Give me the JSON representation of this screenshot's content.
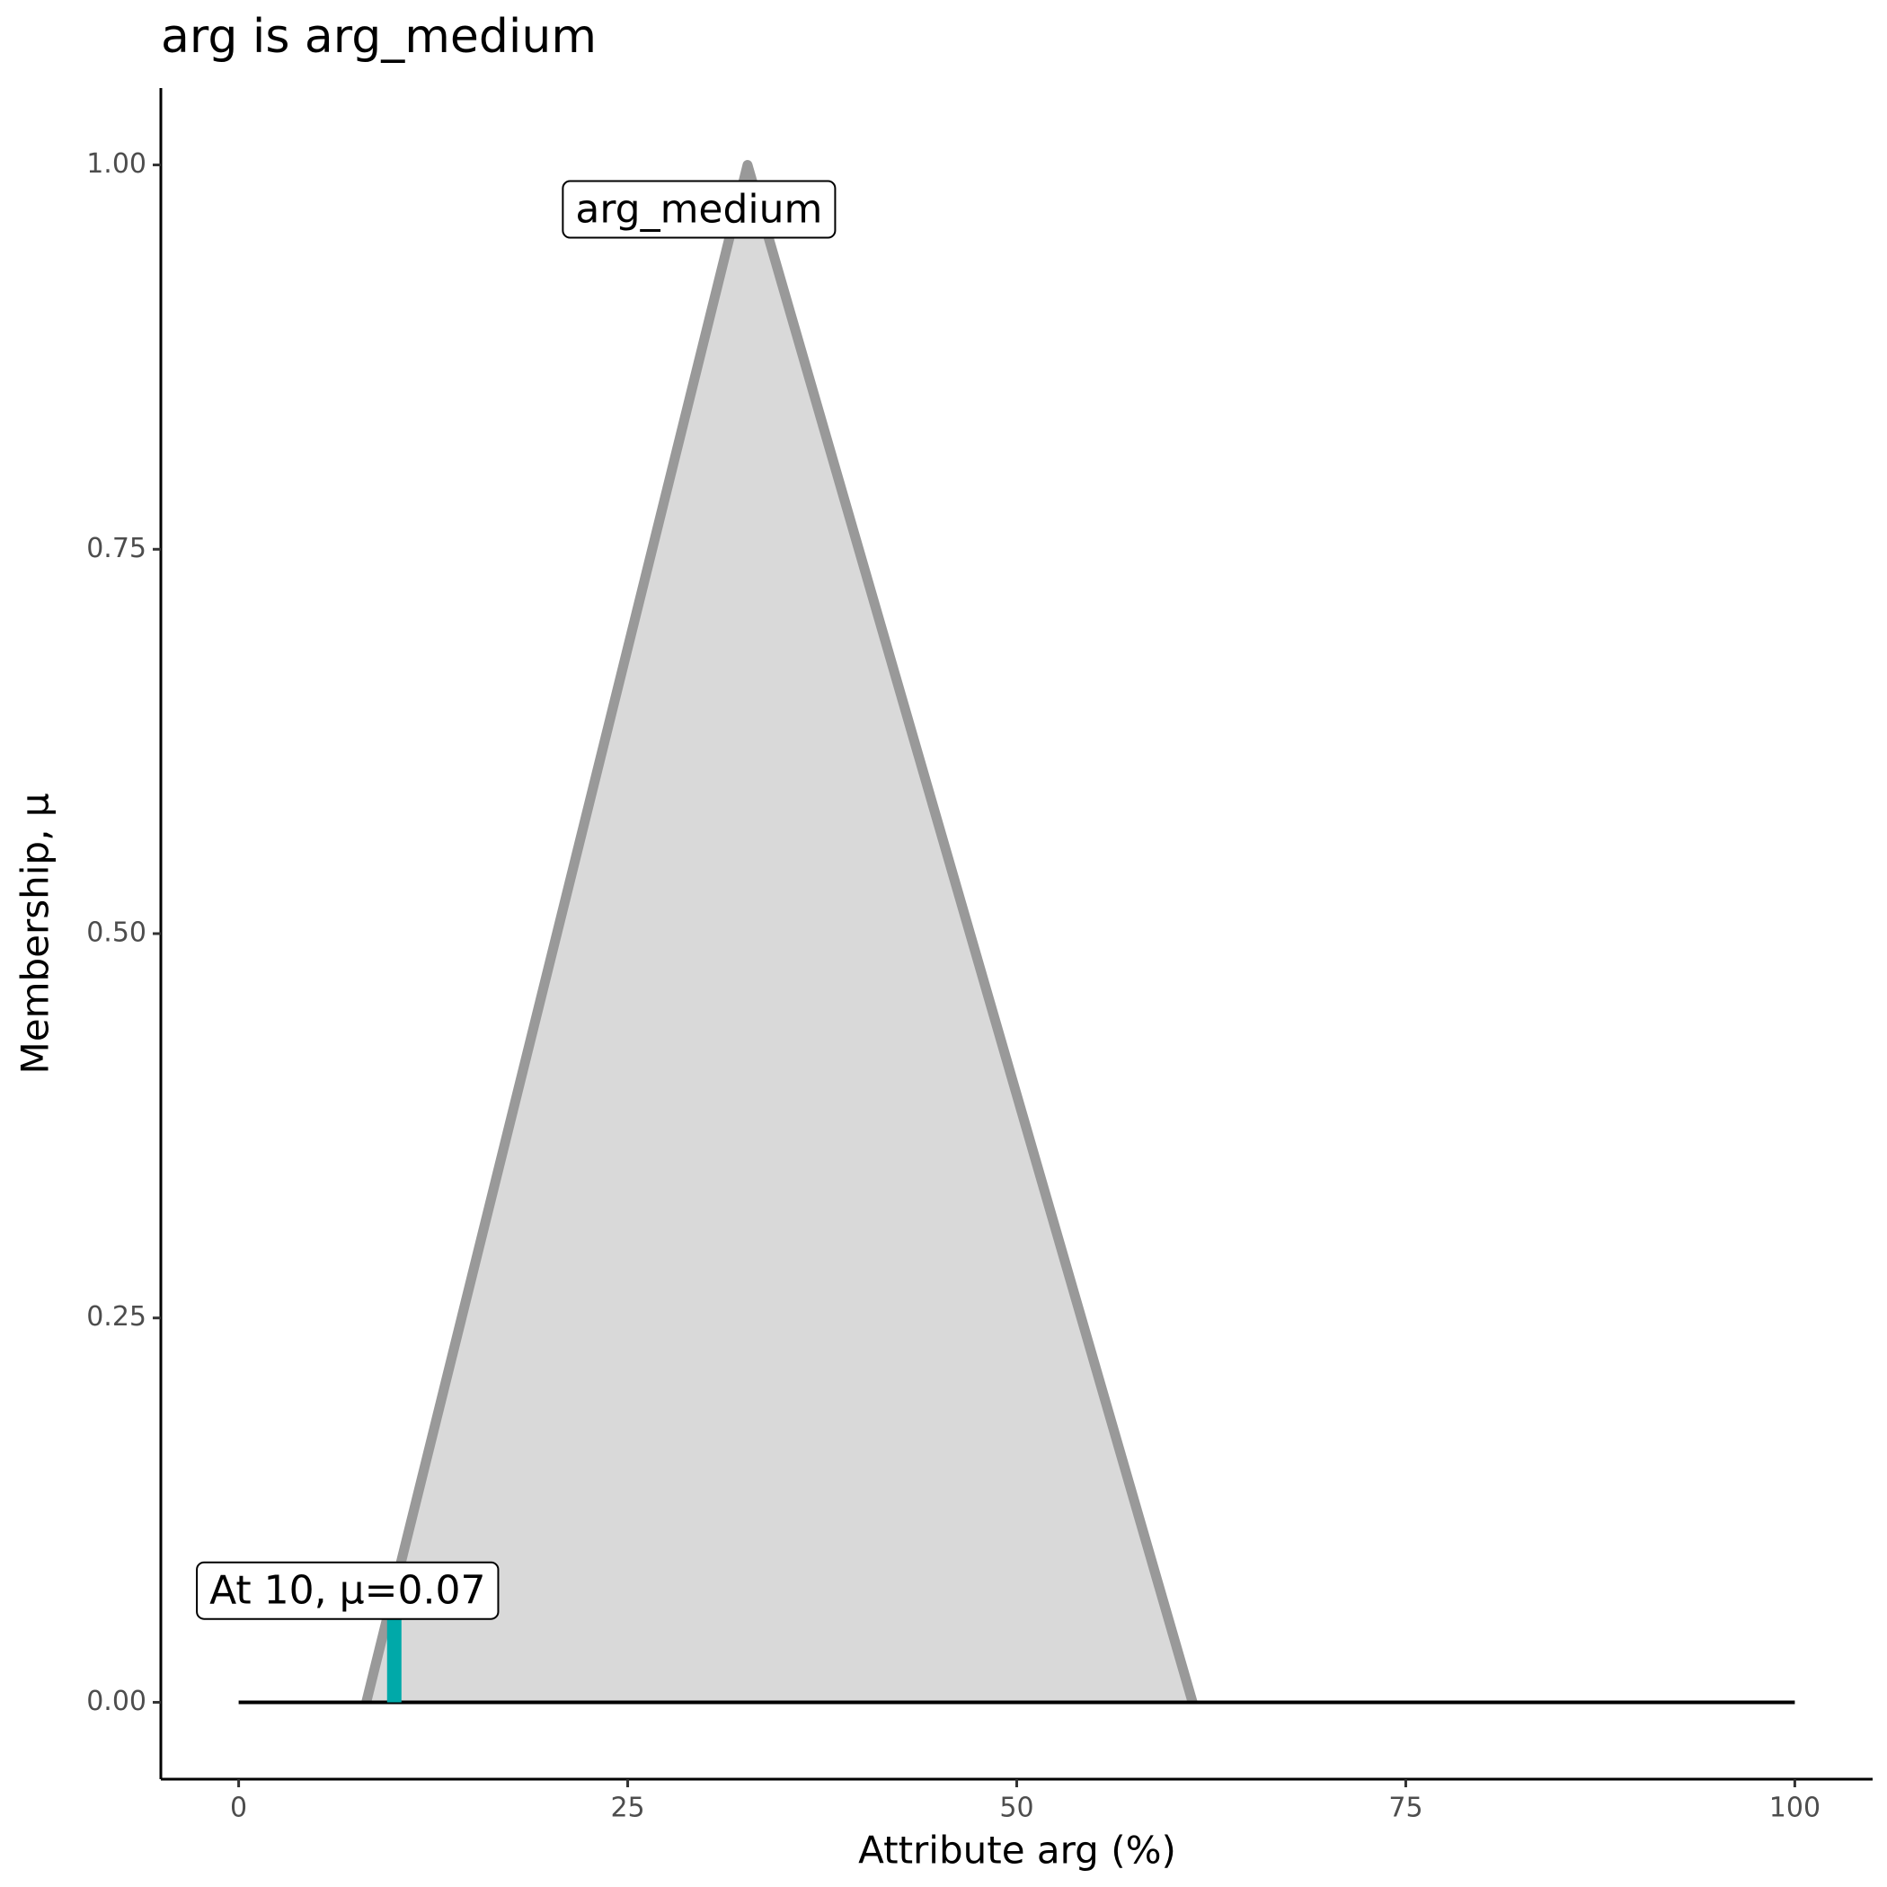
{
  "chart_data": {
    "type": "area",
    "title": "arg is arg_medium",
    "x_label": "Attribute arg (%)",
    "y_label": "Membership, μ",
    "series": [
      {
        "name": "arg_medium",
        "color": "#999999",
        "fill": "#d9d9d9",
        "x": [
          8.2,
          32.7,
          61.3
        ],
        "values": [
          0,
          1,
          0
        ]
      }
    ],
    "baseline": {
      "x": [
        0,
        100
      ],
      "values": [
        0,
        0
      ],
      "color": "#000000"
    },
    "highlight": {
      "x": 10,
      "value": 0.07,
      "color": "#00a9a9",
      "label": "At 10, μ=0.07"
    },
    "xlim": [
      -5,
      105
    ],
    "xticks": [
      0,
      25,
      50,
      75,
      100
    ],
    "ylim": [
      -0.05,
      1.05
    ],
    "yticks": [
      {
        "value": 0,
        "label": "0.00"
      },
      {
        "value": 0.25,
        "label": "0.25"
      },
      {
        "value": 0.5,
        "label": "0.50"
      },
      {
        "value": 0.75,
        "label": "0.75"
      },
      {
        "value": 1,
        "label": "1.00"
      }
    ],
    "grid": false
  }
}
